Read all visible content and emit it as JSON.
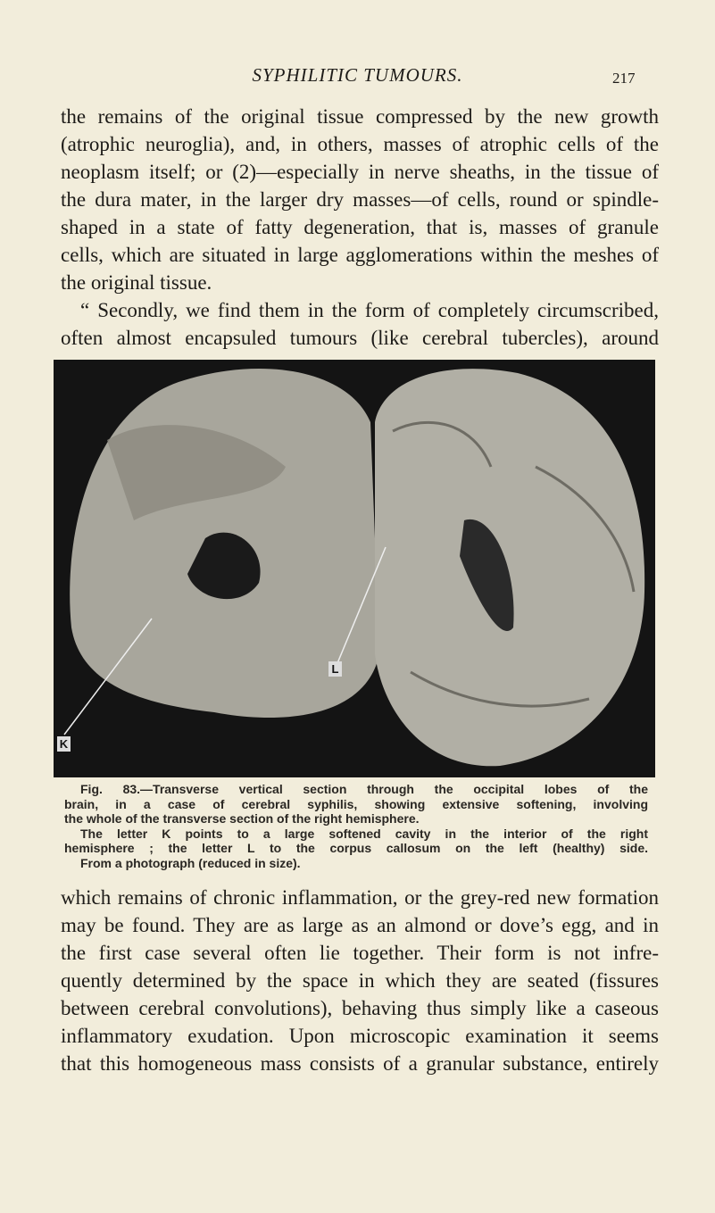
{
  "header": {
    "title": "SYPHILITIC TUMOURS.",
    "page_number": "217"
  },
  "text_top": [
    "the remains of the original tissue compressed by the new growth",
    "(atrophic neuroglia), and, in others, masses of atrophic cells of the",
    "neoplasm itself; or (2)—especially in nerve sheaths, in the tissue of",
    "the dura mater, in the larger dry masses—of cells, round or spindle-",
    "shaped in a state of fatty degeneration, that is, masses of granule",
    "cells, which are situated in large agglomerations within the meshes of",
    "the original tissue.",
    "“ Secondly, we find them in the form of completely circumscribed,",
    "often almost encapsuled tumours (like cerebral tubercles), around"
  ],
  "figure": {
    "labels": [
      "K",
      "L"
    ],
    "caption": [
      "Fig. 83.—Transverse vertical section through the occipital lobes of the",
      "brain, in a case of cerebral syphilis, showing extensive softening, involving",
      "the whole of the transverse section of the right hemisphere.",
      "The letter K points to a large softened cavity in the interior of the right",
      "hemisphere ; the letter L to the corpus callosum on the left (healthy) side.",
      "From a photograph (reduced in size)."
    ]
  },
  "text_bottom": [
    "which remains of chronic inflammation, or the grey-red new formation",
    "may be found. They are as large as an almond or dove’s egg, and in",
    "the first case several often lie together. Their form is not infre-",
    "quently determined by the space in which they are seated (fissures",
    "between cerebral convolutions), behaving thus simply like a caseous",
    "inflammatory exudation. Upon microscopic examination it seems",
    "that this homogeneous mass consists of a granular substance, entirely"
  ]
}
